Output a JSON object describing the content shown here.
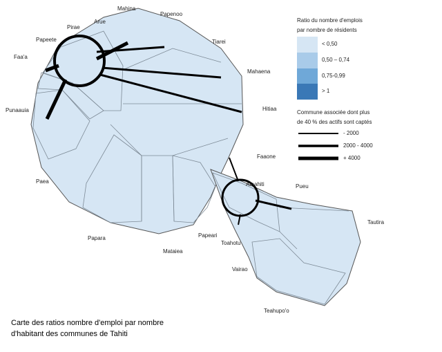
{
  "map": {
    "labels": [
      "Mahina",
      "Papenoo",
      "Arue",
      "Pirae",
      "Papeete",
      "Faa'a",
      "Tiarei",
      "Mahaena",
      "Hitiaa",
      "Punaauia",
      "Faaone",
      "Paea",
      "Afaahiti",
      "Pueu",
      "Tautira",
      "Papara",
      "Papeari",
      "Toahotu",
      "Mataiea",
      "Vairao",
      "Teahupo'o"
    ]
  },
  "legend": {
    "title": [
      "Ratio du nombre d'emplois",
      "par nombre de résidents"
    ],
    "classes": [
      "< 0,50",
      "0,50 – 0,74",
      "0,75-0,99",
      "> 1"
    ],
    "flows_title": [
      "Commune associée dont plus",
      "de 40 % des actifs sont captés"
    ],
    "flows": [
      "- 2000",
      "2000 - 4000",
      "+ 4000"
    ]
  },
  "caption": [
    "Carte des ratios nombre d'emploi par nombre",
    "d'habitant des communes de Tahiti"
  ]
}
